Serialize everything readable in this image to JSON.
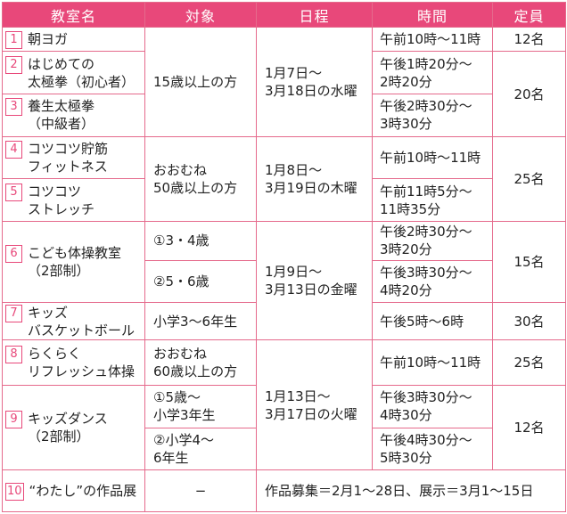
{
  "headers": {
    "classroom": "教室名",
    "target": "対象",
    "schedule": "日程",
    "time": "時間",
    "capacity": "定員"
  },
  "rows": [
    {
      "num": "1",
      "name": "朝ヨガ",
      "time": "午前10時〜11時",
      "capacity": "12名"
    },
    {
      "num": "2",
      "name": "はじめての\n太極拳（初心者）",
      "time": "午後1時20分〜\n2時20分"
    },
    {
      "num": "3",
      "name": "養生太極拳\n（中級者）",
      "time": "午後2時30分〜\n3時30分"
    },
    {
      "num": "4",
      "name": "コツコツ貯筋\nフィットネス",
      "time": "午前10時〜11時"
    },
    {
      "num": "5",
      "name": "コツコツ\nストレッチ",
      "time": "午前11時5分〜\n11時35分"
    },
    {
      "num": "6",
      "name": "こども体操教室\n（2部制）",
      "time": "午後2時30分〜\n3時20分"
    },
    {
      "time": "午後3時30分〜\n4時20分"
    },
    {
      "num": "7",
      "name": "キッズ\nバスケットボール",
      "target": "小学3〜6年生",
      "time": "午後5時〜6時",
      "capacity": "30名"
    },
    {
      "num": "8",
      "name": "らくらく\nリフレッシュ体操",
      "target": "おおむね\n60歳以上の方",
      "time": "午前10時〜11時",
      "capacity": "25名"
    },
    {
      "num": "9",
      "name": "キッズダンス\n（2部制）",
      "target": "①5歳〜\n小学3年生",
      "time": "午後3時30分〜\n4時30分"
    },
    {
      "target": "②小学4〜\n6年生",
      "time": "午後4時30分〜\n5時30分"
    },
    {
      "num": "10",
      "name": "“わたし”の作品展",
      "target": "−",
      "schedule": "作品募集＝2月1〜28日、展示＝3月1〜15日"
    }
  ],
  "groups": {
    "target_1_3": "15歳以上の方",
    "schedule_1_3": "1月7日〜\n3月18日の水曜",
    "capacity_2_3": "20名",
    "target_4_5": "おおむね\n50歳以上の方",
    "schedule_4_5": "1月8日〜\n3月19日の木曜",
    "capacity_4_5": "25名",
    "target_6a": "①3・4歳",
    "target_6b": "②5・6歳",
    "schedule_6_7": "1月9日〜\n3月13日の金曜",
    "capacity_6": "15名",
    "schedule_8_9": "1月13日〜\n3月17日の火曜",
    "capacity_9": "12名"
  }
}
